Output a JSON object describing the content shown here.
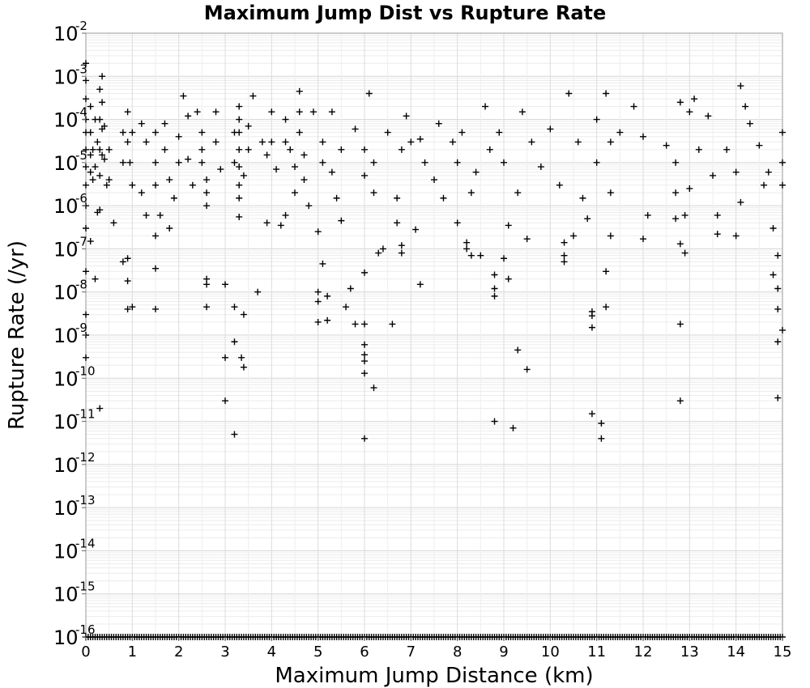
{
  "chart_data": {
    "type": "scatter",
    "title": "Maximum Jump Dist vs Rupture Rate",
    "xlabel": "Maximum Jump Distance (km)",
    "ylabel": "Rupture Rate (/yr)",
    "xlim": [
      0,
      15
    ],
    "ylim": [
      1e-16,
      0.01
    ],
    "yscale": "log",
    "grid": true,
    "marker": "plus",
    "marker_color": "#000000",
    "x_ticks": [
      "0",
      "1",
      "2",
      "3",
      "4",
      "5",
      "6",
      "7",
      "8",
      "9",
      "10",
      "11",
      "12",
      "13",
      "14",
      "15"
    ],
    "y_ticks": [
      {
        "base": "10",
        "exp": "-16"
      },
      {
        "base": "10",
        "exp": "-15"
      },
      {
        "base": "10",
        "exp": "-14"
      },
      {
        "base": "10",
        "exp": "-13"
      },
      {
        "base": "10",
        "exp": "-12"
      },
      {
        "base": "10",
        "exp": "-11"
      },
      {
        "base": "10",
        "exp": "-10"
      },
      {
        "base": "10",
        "exp": "-9"
      },
      {
        "base": "10",
        "exp": "-8"
      },
      {
        "base": "10",
        "exp": "-7"
      },
      {
        "base": "10",
        "exp": "-6"
      },
      {
        "base": "10",
        "exp": "-5"
      },
      {
        "base": "10",
        "exp": "-4"
      },
      {
        "base": "10",
        "exp": "-3"
      },
      {
        "base": "10",
        "exp": "-2"
      }
    ],
    "points": [
      [
        0.0,
        0.002
      ],
      [
        0.0,
        0.0008
      ],
      [
        0.0,
        0.0003
      ],
      [
        0.0,
        0.0001
      ],
      [
        0.0,
        5e-05
      ],
      [
        0.0,
        2e-05
      ],
      [
        0.0,
        8e-06
      ],
      [
        0.0,
        3e-06
      ],
      [
        0.0,
        1e-06
      ],
      [
        0.0,
        3e-07
      ],
      [
        0.0,
        3e-08
      ],
      [
        0.0,
        3e-09
      ],
      [
        0.0,
        1e-09
      ],
      [
        0.0,
        3e-10
      ],
      [
        0.1,
        0.0002
      ],
      [
        0.1,
        5e-05
      ],
      [
        0.1,
        1.5e-05
      ],
      [
        0.1,
        6e-06
      ],
      [
        0.1,
        1.5e-07
      ],
      [
        0.15,
        2e-05
      ],
      [
        0.15,
        4e-06
      ],
      [
        0.2,
        0.0001
      ],
      [
        0.2,
        8e-06
      ],
      [
        0.2,
        2e-08
      ],
      [
        0.25,
        3e-05
      ],
      [
        0.25,
        7e-07
      ],
      [
        0.3,
        0.0005
      ],
      [
        0.3,
        0.0001
      ],
      [
        0.3,
        2e-05
      ],
      [
        0.3,
        5e-06
      ],
      [
        0.3,
        8e-07
      ],
      [
        0.3,
        2e-11
      ],
      [
        0.35,
        0.001
      ],
      [
        0.35,
        0.00025
      ],
      [
        0.35,
        6e-05
      ],
      [
        0.35,
        1.5e-05
      ],
      [
        0.4,
        7e-05
      ],
      [
        0.4,
        1.2e-05
      ],
      [
        0.45,
        3e-06
      ],
      [
        0.5,
        2e-05
      ],
      [
        0.5,
        4e-06
      ],
      [
        0.6,
        4e-07
      ],
      [
        0.8,
        5e-05
      ],
      [
        0.8,
        1e-05
      ],
      [
        0.8,
        5e-08
      ],
      [
        0.9,
        0.00015
      ],
      [
        0.9,
        3e-05
      ],
      [
        0.9,
        6e-08
      ],
      [
        0.9,
        1.8e-08
      ],
      [
        0.9,
        4e-09
      ],
      [
        0.95,
        1e-05
      ],
      [
        1.0,
        4.5e-09
      ],
      [
        1.0,
        3e-06
      ],
      [
        1.0,
        5e-05
      ],
      [
        1.2,
        8e-05
      ],
      [
        1.2,
        2e-06
      ],
      [
        1.3,
        3e-05
      ],
      [
        1.3,
        6e-07
      ],
      [
        1.5,
        5e-05
      ],
      [
        1.5,
        1e-05
      ],
      [
        1.5,
        3e-06
      ],
      [
        1.5,
        2e-07
      ],
      [
        1.5,
        3.5e-08
      ],
      [
        1.5,
        4e-09
      ],
      [
        1.6,
        6e-07
      ],
      [
        1.7,
        8e-05
      ],
      [
        1.7,
        2e-05
      ],
      [
        1.8,
        3e-07
      ],
      [
        1.8,
        4e-06
      ],
      [
        1.9,
        1.5e-06
      ],
      [
        2.0,
        4e-05
      ],
      [
        2.0,
        1e-05
      ],
      [
        2.1,
        0.00035
      ],
      [
        2.2,
        0.00012
      ],
      [
        2.2,
        1.2e-05
      ],
      [
        2.3,
        3e-06
      ],
      [
        2.4,
        0.00015
      ],
      [
        2.5,
        5e-05
      ],
      [
        2.5,
        2e-05
      ],
      [
        2.5,
        1e-05
      ],
      [
        2.6,
        4e-06
      ],
      [
        2.6,
        2e-06
      ],
      [
        2.6,
        1e-06
      ],
      [
        2.6,
        2e-08
      ],
      [
        2.6,
        1.5e-08
      ],
      [
        2.6,
        4.5e-09
      ],
      [
        2.8,
        0.00015
      ],
      [
        2.8,
        3e-05
      ],
      [
        2.9,
        7e-06
      ],
      [
        3.0,
        1.5e-08
      ],
      [
        3.0,
        3e-10
      ],
      [
        3.0,
        3e-11
      ],
      [
        3.2,
        5e-05
      ],
      [
        3.2,
        1e-05
      ],
      [
        3.2,
        4.5e-09
      ],
      [
        3.2,
        7e-10
      ],
      [
        3.2,
        5e-12
      ],
      [
        3.3,
        0.0002
      ],
      [
        3.3,
        0.0001
      ],
      [
        3.3,
        5e-05
      ],
      [
        3.3,
        2e-05
      ],
      [
        3.3,
        8e-06
      ],
      [
        3.3,
        3e-06
      ],
      [
        3.3,
        1.5e-06
      ],
      [
        3.3,
        5.5e-07
      ],
      [
        3.35,
        3e-10
      ],
      [
        3.4,
        1.8e-10
      ],
      [
        3.4,
        3e-09
      ],
      [
        3.4,
        5e-06
      ],
      [
        3.5,
        7e-05
      ],
      [
        3.5,
        2e-05
      ],
      [
        3.6,
        0.00035
      ],
      [
        3.7,
        1e-08
      ],
      [
        3.8,
        3e-05
      ],
      [
        3.9,
        4e-07
      ],
      [
        3.9,
        1.5e-05
      ],
      [
        4.0,
        0.00015
      ],
      [
        4.0,
        3e-05
      ],
      [
        4.1,
        7e-06
      ],
      [
        4.2,
        3.5e-07
      ],
      [
        4.3,
        0.0001
      ],
      [
        4.3,
        3e-05
      ],
      [
        4.3,
        6e-07
      ],
      [
        4.4,
        2e-05
      ],
      [
        4.5,
        8e-06
      ],
      [
        4.5,
        2e-06
      ],
      [
        4.6,
        0.00045
      ],
      [
        4.6,
        0.00015
      ],
      [
        4.6,
        5e-05
      ],
      [
        4.7,
        1.5e-05
      ],
      [
        4.7,
        4e-06
      ],
      [
        4.8,
        1e-06
      ],
      [
        4.9,
        0.00015
      ],
      [
        5.0,
        2.5e-07
      ],
      [
        5.0,
        1e-08
      ],
      [
        5.0,
        6e-09
      ],
      [
        5.0,
        2e-09
      ],
      [
        5.1,
        4.5e-08
      ],
      [
        5.1,
        3e-05
      ],
      [
        5.1,
        1e-05
      ],
      [
        5.2,
        8e-09
      ],
      [
        5.2,
        2.2e-09
      ],
      [
        5.3,
        0.00015
      ],
      [
        5.3,
        6e-06
      ],
      [
        5.4,
        1.5e-06
      ],
      [
        5.5,
        2e-05
      ],
      [
        5.5,
        4.5e-07
      ],
      [
        5.6,
        4.5e-09
      ],
      [
        5.7,
        1.2e-08
      ],
      [
        5.8,
        1.8e-09
      ],
      [
        5.8,
        6e-05
      ],
      [
        6.0,
        2.8e-08
      ],
      [
        6.0,
        1.8e-09
      ],
      [
        6.0,
        6e-10
      ],
      [
        6.0,
        3.5e-10
      ],
      [
        6.0,
        2.5e-10
      ],
      [
        6.0,
        1.3e-10
      ],
      [
        6.0,
        4e-12
      ],
      [
        6.0,
        5e-06
      ],
      [
        6.0,
        2e-05
      ],
      [
        6.1,
        0.0004
      ],
      [
        6.2,
        6e-11
      ],
      [
        6.2,
        2e-06
      ],
      [
        6.2,
        1e-05
      ],
      [
        6.3,
        8e-08
      ],
      [
        6.4,
        1e-07
      ],
      [
        6.5,
        5e-05
      ],
      [
        6.6,
        1.8e-09
      ],
      [
        6.7,
        4e-07
      ],
      [
        6.7,
        1.5e-06
      ],
      [
        6.8,
        1.2e-07
      ],
      [
        6.8,
        8e-08
      ],
      [
        6.8,
        2e-05
      ],
      [
        6.9,
        0.00012
      ],
      [
        7.0,
        3e-05
      ],
      [
        7.1,
        2.8e-07
      ],
      [
        7.2,
        1.5e-08
      ],
      [
        7.2,
        3.5e-05
      ],
      [
        7.3,
        1e-05
      ],
      [
        7.5,
        4e-06
      ],
      [
        7.6,
        8e-05
      ],
      [
        7.7,
        1.5e-06
      ],
      [
        7.9,
        3e-05
      ],
      [
        8.0,
        4e-07
      ],
      [
        8.0,
        1e-05
      ],
      [
        8.1,
        5e-05
      ],
      [
        8.2,
        1.4e-07
      ],
      [
        8.2,
        1e-07
      ],
      [
        8.3,
        7e-08
      ],
      [
        8.3,
        2e-06
      ],
      [
        8.4,
        6e-06
      ],
      [
        8.5,
        7e-08
      ],
      [
        8.6,
        0.0002
      ],
      [
        8.7,
        2e-05
      ],
      [
        8.8,
        2.5e-08
      ],
      [
        8.8,
        1.2e-08
      ],
      [
        8.8,
        8e-09
      ],
      [
        8.8,
        1e-11
      ],
      [
        8.9,
        5e-05
      ],
      [
        9.0,
        1e-05
      ],
      [
        9.0,
        6e-08
      ],
      [
        9.1,
        3.5e-07
      ],
      [
        9.1,
        2e-08
      ],
      [
        9.2,
        7e-12
      ],
      [
        9.3,
        4.5e-10
      ],
      [
        9.3,
        2e-06
      ],
      [
        9.4,
        0.00015
      ],
      [
        9.5,
        1.6e-10
      ],
      [
        9.5,
        1.7e-07
      ],
      [
        9.6,
        3e-05
      ],
      [
        9.8,
        8e-06
      ],
      [
        10.0,
        6e-05
      ],
      [
        10.2,
        3e-06
      ],
      [
        10.3,
        1.4e-07
      ],
      [
        10.3,
        7e-08
      ],
      [
        10.3,
        5e-08
      ],
      [
        10.4,
        0.0004
      ],
      [
        10.5,
        2e-07
      ],
      [
        10.6,
        3e-05
      ],
      [
        10.7,
        1.5e-06
      ],
      [
        10.8,
        5e-07
      ],
      [
        10.9,
        1.5e-09
      ],
      [
        10.9,
        3.5e-09
      ],
      [
        10.9,
        2.8e-09
      ],
      [
        10.9,
        1.5e-11
      ],
      [
        11.0,
        0.0001
      ],
      [
        11.0,
        1e-05
      ],
      [
        11.1,
        9e-12
      ],
      [
        11.1,
        4e-12
      ],
      [
        11.2,
        3e-08
      ],
      [
        11.2,
        4.5e-09
      ],
      [
        11.2,
        0.0004
      ],
      [
        11.3,
        2e-06
      ],
      [
        11.3,
        3e-05
      ],
      [
        11.3,
        2e-07
      ],
      [
        11.5,
        5e-05
      ],
      [
        11.8,
        0.0002
      ],
      [
        12.0,
        1.7e-07
      ],
      [
        12.0,
        4e-05
      ],
      [
        12.1,
        6e-07
      ],
      [
        12.5,
        2.5e-05
      ],
      [
        12.7,
        5e-07
      ],
      [
        12.7,
        2e-06
      ],
      [
        12.7,
        1e-05
      ],
      [
        12.8,
        1.3e-07
      ],
      [
        12.8,
        1.8e-09
      ],
      [
        12.8,
        3e-11
      ],
      [
        12.8,
        0.00025
      ],
      [
        12.9,
        8e-08
      ],
      [
        12.9,
        6e-07
      ],
      [
        13.0,
        0.00015
      ],
      [
        13.0,
        2.5e-06
      ],
      [
        13.1,
        0.0003
      ],
      [
        13.2,
        2e-05
      ],
      [
        13.4,
        0.00012
      ],
      [
        13.5,
        5e-06
      ],
      [
        13.6,
        6e-07
      ],
      [
        13.6,
        2.2e-07
      ],
      [
        13.8,
        2e-05
      ],
      [
        14.0,
        6e-06
      ],
      [
        14.0,
        2e-07
      ],
      [
        14.1,
        1.2e-06
      ],
      [
        14.1,
        0.0006
      ],
      [
        14.2,
        0.0002
      ],
      [
        14.3,
        8e-05
      ],
      [
        14.5,
        2.5e-05
      ],
      [
        14.6,
        3e-06
      ],
      [
        14.7,
        6e-06
      ],
      [
        14.8,
        2.5e-08
      ],
      [
        14.8,
        3e-07
      ],
      [
        14.9,
        1.2e-08
      ],
      [
        14.9,
        4e-09
      ],
      [
        14.9,
        7e-10
      ],
      [
        14.9,
        3.5e-11
      ],
      [
        14.9,
        7e-08
      ],
      [
        15.0,
        1.3e-09
      ],
      [
        15.0,
        1e-05
      ],
      [
        15.0,
        3e-06
      ],
      [
        15.0,
        5e-05
      ]
    ],
    "floor_points": {
      "y": 1e-16,
      "x": [
        0.0,
        0.05,
        0.1,
        0.15,
        0.2,
        0.25,
        0.3,
        0.35,
        0.4,
        0.45,
        0.5,
        0.55,
        0.6,
        0.65,
        0.7,
        0.75,
        0.8,
        0.85,
        0.9,
        0.95,
        1.0,
        1.05,
        1.1,
        1.15,
        1.2,
        1.25,
        1.3,
        1.35,
        1.4,
        1.45,
        1.5,
        1.55,
        1.6,
        1.65,
        1.7,
        1.75,
        1.8,
        1.85,
        1.9,
        1.95,
        2.0,
        2.05,
        2.1,
        2.15,
        2.2,
        2.25,
        2.3,
        2.35,
        2.4,
        2.45,
        2.5,
        2.55,
        2.6,
        2.65,
        2.7,
        2.75,
        2.8,
        2.85,
        2.9,
        2.95,
        3.0,
        3.05,
        3.1,
        3.15,
        3.2,
        3.25,
        3.3,
        3.35,
        3.4,
        3.45,
        3.5,
        3.55,
        3.6,
        3.65,
        3.7,
        3.75,
        3.8,
        3.85,
        3.9,
        3.95,
        4.0,
        4.05,
        4.1,
        4.15,
        4.2,
        4.25,
        4.3,
        4.35,
        4.4,
        4.45,
        4.5,
        4.55,
        4.6,
        4.65,
        4.7,
        4.75,
        4.8,
        4.85,
        4.9,
        4.95,
        5.0,
        5.05,
        5.1,
        5.15,
        5.2,
        5.25,
        5.3,
        5.35,
        5.4,
        5.45,
        5.5,
        5.55,
        5.6,
        5.65,
        5.7,
        5.75,
        5.8,
        5.85,
        5.9,
        5.95,
        6.0,
        6.05,
        6.1,
        6.15,
        6.2,
        6.25,
        6.3,
        6.35,
        6.4,
        6.45,
        6.5,
        6.55,
        6.6,
        6.65,
        6.7,
        6.75,
        6.8,
        6.85,
        6.9,
        6.95,
        7.0,
        7.05,
        7.1,
        7.15,
        7.2,
        7.25,
        7.3,
        7.35,
        7.4,
        7.45,
        7.5,
        7.55,
        7.6,
        7.65,
        7.7,
        7.75,
        7.8,
        7.85,
        7.9,
        7.95,
        8.0,
        8.05,
        8.1,
        8.15,
        8.2,
        8.25,
        8.3,
        8.35,
        8.4,
        8.45,
        8.5,
        8.55,
        8.6,
        8.65,
        8.7,
        8.75,
        8.8,
        8.85,
        8.9,
        8.95,
        9.0,
        9.05,
        9.1,
        9.15,
        9.2,
        9.25,
        9.3,
        9.35,
        9.4,
        9.45,
        9.5,
        9.55,
        9.6,
        9.65,
        9.7,
        9.75,
        9.8,
        9.85,
        9.9,
        9.95,
        10.0,
        10.05,
        10.1,
        10.15,
        10.2,
        10.25,
        10.3,
        10.35,
        10.4,
        10.45,
        10.5,
        10.55,
        10.6,
        10.65,
        10.7,
        10.75,
        10.8,
        10.85,
        10.9,
        10.95,
        11.0,
        11.05,
        11.1,
        11.15,
        11.2,
        11.25,
        11.3,
        11.35,
        11.4,
        11.45,
        11.5,
        11.55,
        11.6,
        11.65,
        11.7,
        11.75,
        11.8,
        11.85,
        11.9,
        11.95,
        12.0,
        12.05,
        12.1,
        12.15,
        12.2,
        12.25,
        12.3,
        12.35,
        12.4,
        12.45,
        12.5,
        12.55,
        12.6,
        12.65,
        12.7,
        12.75,
        12.8,
        12.85,
        12.9,
        12.95,
        13.0,
        13.05,
        13.1,
        13.15,
        13.2,
        13.25,
        13.3,
        13.35,
        13.4,
        13.45,
        13.5,
        13.55,
        13.6,
        13.65,
        13.7,
        13.75,
        13.8,
        13.85,
        13.9,
        13.95,
        14.0,
        14.05,
        14.1,
        14.15,
        14.2,
        14.25,
        14.3,
        14.35,
        14.4,
        14.45,
        14.5,
        14.55,
        14.6,
        14.65,
        14.7,
        14.75,
        14.8,
        14.85,
        14.9,
        14.95,
        15.0
      ]
    }
  }
}
